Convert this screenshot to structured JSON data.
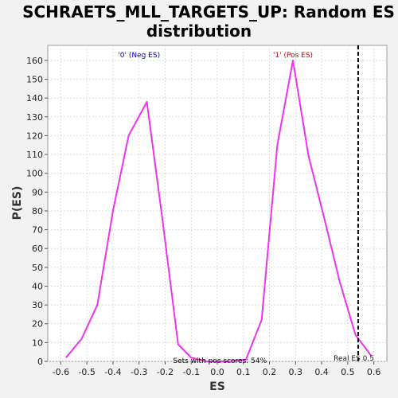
{
  "chart_data": {
    "type": "line",
    "title_lines": [
      "SCHRAETS_MLL_TARGETS_UP: Random ES",
      "distribution"
    ],
    "xlabel": "ES",
    "ylabel": "P(ES)",
    "xlim": [
      -0.65,
      0.65
    ],
    "ylim": [
      0,
      168
    ],
    "xticks": [
      -0.6,
      -0.5,
      -0.4,
      -0.3,
      -0.2,
      -0.1,
      0.0,
      0.1,
      0.2,
      0.3,
      0.4,
      0.5,
      0.6
    ],
    "xtick_labels": [
      "-0.6",
      "-0.5",
      "-0.4",
      "-0.3",
      "-0.2",
      "-0.1",
      "0.0",
      "0.1",
      "0.2",
      "0.3",
      "0.4",
      "0.5",
      "0.6"
    ],
    "yticks": [
      0,
      10,
      20,
      30,
      40,
      50,
      60,
      70,
      80,
      90,
      100,
      110,
      120,
      130,
      140,
      150,
      160
    ],
    "ytick_labels": [
      "0",
      "10",
      "20",
      "30",
      "40",
      "50",
      "60",
      "70",
      "80",
      "90",
      "100",
      "110",
      "120",
      "130",
      "140",
      "150",
      "160"
    ],
    "grid": true,
    "series": [
      {
        "color": "#ee33ee",
        "x": [
          -0.58,
          -0.52,
          -0.46,
          -0.4,
          -0.34,
          -0.27,
          -0.21,
          -0.15,
          -0.1,
          -0.04,
          0.04,
          0.11,
          0.17,
          0.23,
          0.29,
          0.35,
          0.41,
          0.47,
          0.53,
          0.59
        ],
        "y": [
          2,
          12,
          30,
          80,
          120,
          138,
          75,
          9,
          2,
          0,
          0,
          1,
          22,
          115,
          160,
          109,
          76,
          42,
          14,
          3
        ]
      }
    ],
    "real_es": {
      "x": 0.54,
      "label": "Real ES 0.5",
      "color": "#000000"
    },
    "annotations": [
      {
        "text": "'0' (Neg ES)",
        "color": "#0000cc",
        "x": -0.3,
        "y": 163
      },
      {
        "text": "'1' (Pos ES)",
        "color": "#dd0000",
        "x": 0.29,
        "y": 163
      },
      {
        "text": "Sets with pos scores: 54%",
        "color": "#000000",
        "x": 0.01,
        "y": 0.5
      }
    ]
  }
}
